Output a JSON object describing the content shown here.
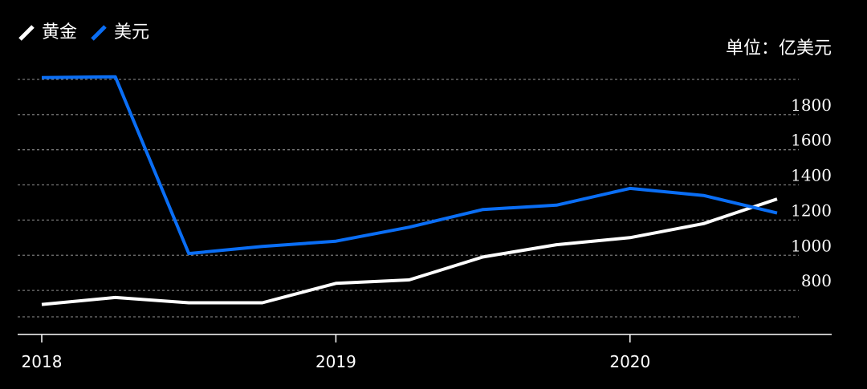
{
  "colors": {
    "background": "#000000",
    "gold": "#ffffff",
    "usd": "#0a6ef5",
    "grid": "#777777",
    "axis": "#ffffff"
  },
  "legend": {
    "items": [
      {
        "label": "黄金",
        "color": "#ffffff",
        "icon": "slash-swatch-icon"
      },
      {
        "label": "美元",
        "color": "#0a6ef5",
        "icon": "slash-swatch-icon"
      }
    ],
    "placement": "top-left"
  },
  "unit_label": "单位：亿美元",
  "chart_data": {
    "type": "line",
    "x": [
      "2018-01",
      "2018-04",
      "2018-07",
      "2018-10",
      "2019-01",
      "2019-04",
      "2019-07",
      "2019-10",
      "2020-01",
      "2020-04",
      "2020-07"
    ],
    "series": [
      {
        "name": "黄金",
        "color": "#ffffff",
        "values": [
          720,
          760,
          730,
          730,
          840,
          860,
          990,
          1060,
          1100,
          1180,
          1320
        ]
      },
      {
        "name": "美元",
        "color": "#0a6ef5",
        "values": [
          2010,
          2015,
          1010,
          1050,
          1080,
          1160,
          1260,
          1285,
          1380,
          1340,
          1240
        ]
      }
    ],
    "x_tick_labels": [
      "2018",
      "2019",
      "2020"
    ],
    "y_tick_labels": [
      "800",
      "1000",
      "1200",
      "1400",
      "1600",
      "1800"
    ],
    "ylim": [
      650,
      2050
    ],
    "y_axis_position": "right",
    "grid": true,
    "title": "",
    "xlabel": "",
    "ylabel": ""
  }
}
